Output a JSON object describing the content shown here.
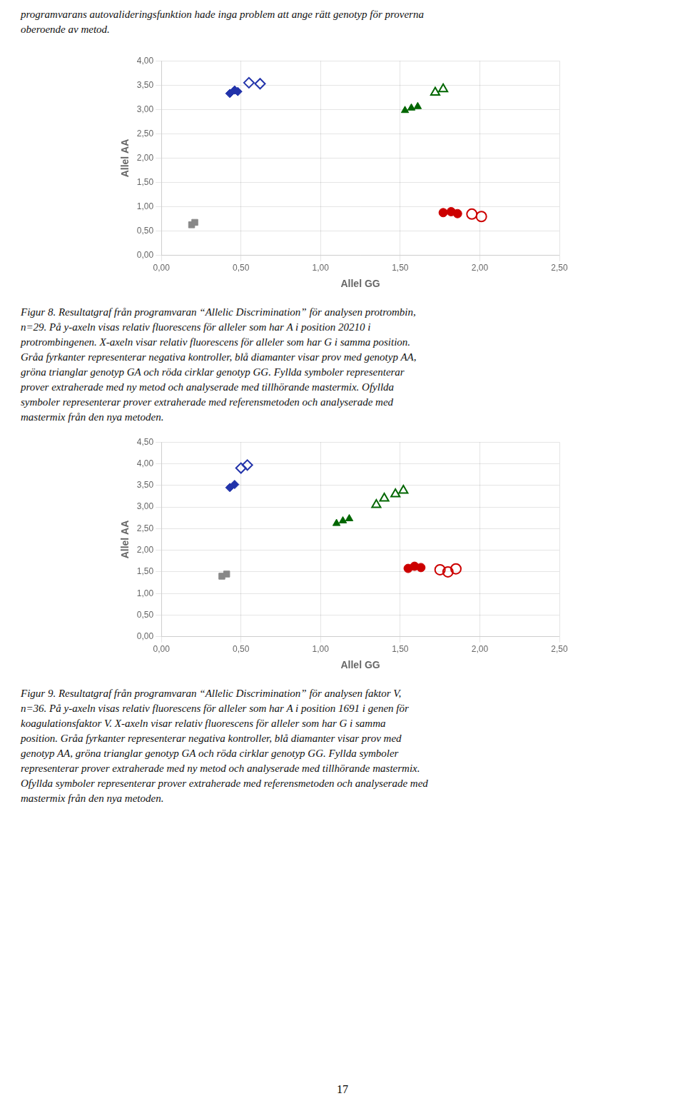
{
  "header": "programvarans autovalideringsfunktion hade inga problem att ange rätt genotyp för proverna\noberoende av metod.",
  "chart_data": [
    {
      "type": "scatter",
      "xlabel": "Allel GG",
      "ylabel": "Allel AA",
      "xlim": [
        0,
        2.5
      ],
      "ylim": [
        0,
        4.0
      ],
      "xticks": [
        {
          "value": 0.0,
          "label": "0,00"
        },
        {
          "value": 0.5,
          "label": "0,50"
        },
        {
          "value": 1.0,
          "label": "1,00"
        },
        {
          "value": 1.5,
          "label": "1,50"
        },
        {
          "value": 2.0,
          "label": "2,00"
        },
        {
          "value": 2.5,
          "label": "2,50"
        }
      ],
      "yticks": [
        {
          "value": 0.0,
          "label": "0,00"
        },
        {
          "value": 0.5,
          "label": "0,50"
        },
        {
          "value": 1.0,
          "label": "1,00"
        },
        {
          "value": 1.5,
          "label": "1,50"
        },
        {
          "value": 2.0,
          "label": "2,00"
        },
        {
          "value": 2.5,
          "label": "2,50"
        },
        {
          "value": 3.0,
          "label": "3,00"
        },
        {
          "value": 3.5,
          "label": "3,50"
        },
        {
          "value": 4.0,
          "label": "4,00"
        }
      ],
      "grid": true,
      "series": [
        {
          "x": [
            0.19,
            0.21
          ],
          "values": [
            0.63,
            0.68
          ],
          "color": "#888888",
          "marker": "square"
        },
        {
          "x": [
            0.43,
            0.46,
            0.48
          ],
          "values": [
            3.33,
            3.4,
            3.37
          ],
          "color": "#2233AA",
          "marker": "diamond"
        },
        {
          "x": [
            0.55,
            0.62
          ],
          "values": [
            3.55,
            3.53
          ],
          "color": "#2233AA",
          "marker": "open-diamond"
        },
        {
          "x": [
            1.53,
            1.57,
            1.61
          ],
          "values": [
            2.98,
            3.03,
            3.06
          ],
          "color": "#006600",
          "marker": "triangle"
        },
        {
          "x": [
            1.72,
            1.77
          ],
          "values": [
            3.35,
            3.42
          ],
          "color": "#006600",
          "marker": "open-triangle"
        },
        {
          "x": [
            1.77,
            1.82,
            1.86
          ],
          "values": [
            0.88,
            0.9,
            0.86
          ],
          "color": "#CC0000",
          "marker": "circle"
        },
        {
          "x": [
            1.95,
            2.01
          ],
          "values": [
            0.85,
            0.8
          ],
          "color": "#CC0000",
          "marker": "open-circle"
        }
      ],
      "caption": "Figur 8. Resultatgraf från programvaran “Allelic Discrimination” för analysen protrombin,\nn=29. På y-axeln visas relativ fluorescens för alleler som har A i position 20210 i\nprotrombingenen. X-axeln visar relativ fluorescens för alleler som har G i samma position.\nGråa fyrkanter representerar negativa kontroller, blå diamanter visar prov med genotyp AA,\ngröna trianglar genotyp GA och röda cirklar genotyp GG. Fyllda symboler representerar\nprover extraherade med ny metod och analyserade med tillhörande mastermix. Ofyllda\nsymboler representerar prover extraherade med referensmetoden och analyserade med\nmastermix från den nya metoden."
    },
    {
      "type": "scatter",
      "xlabel": "Allel GG",
      "ylabel": "Allel AA",
      "xlim": [
        0,
        2.5
      ],
      "ylim": [
        0,
        4.5
      ],
      "xticks": [
        {
          "value": 0.0,
          "label": "0,00"
        },
        {
          "value": 0.5,
          "label": "0,50"
        },
        {
          "value": 1.0,
          "label": "1,00"
        },
        {
          "value": 1.5,
          "label": "1,50"
        },
        {
          "value": 2.0,
          "label": "2,00"
        },
        {
          "value": 2.5,
          "label": "2,50"
        }
      ],
      "yticks": [
        {
          "value": 0.0,
          "label": "0,00"
        },
        {
          "value": 0.5,
          "label": "0,50"
        },
        {
          "value": 1.0,
          "label": "1,00"
        },
        {
          "value": 1.5,
          "label": "1,50"
        },
        {
          "value": 2.0,
          "label": "2,00"
        },
        {
          "value": 2.5,
          "label": "2,50"
        },
        {
          "value": 3.0,
          "label": "3,00"
        },
        {
          "value": 3.5,
          "label": "3,50"
        },
        {
          "value": 4.0,
          "label": "4,00"
        },
        {
          "value": 4.5,
          "label": "4,50"
        }
      ],
      "grid": true,
      "series": [
        {
          "x": [
            0.38,
            0.41
          ],
          "values": [
            1.4,
            1.45
          ],
          "color": "#888888",
          "marker": "square"
        },
        {
          "x": [
            0.43,
            0.46
          ],
          "values": [
            3.45,
            3.52
          ],
          "color": "#2233AA",
          "marker": "diamond"
        },
        {
          "x": [
            0.5,
            0.54
          ],
          "values": [
            3.9,
            3.97
          ],
          "color": "#2233AA",
          "marker": "open-diamond"
        },
        {
          "x": [
            1.1,
            1.14,
            1.18
          ],
          "values": [
            2.62,
            2.68,
            2.73
          ],
          "color": "#006600",
          "marker": "triangle"
        },
        {
          "x": [
            1.35,
            1.4,
            1.47,
            1.52
          ],
          "values": [
            3.05,
            3.2,
            3.3,
            3.38
          ],
          "color": "#006600",
          "marker": "open-triangle"
        },
        {
          "x": [
            1.55,
            1.59,
            1.63
          ],
          "values": [
            1.58,
            1.63,
            1.6
          ],
          "color": "#CC0000",
          "marker": "circle"
        },
        {
          "x": [
            1.75,
            1.8,
            1.85
          ],
          "values": [
            1.55,
            1.5,
            1.57
          ],
          "color": "#CC0000",
          "marker": "open-circle"
        }
      ],
      "caption": "Figur 9. Resultatgraf från programvaran “Allelic Discrimination” för analysen faktor V,\nn=36. På y-axeln visas relativ fluorescens för alleler som har A i position 1691 i genen för\nkoagulationsfaktor V. X-axeln visar relativ fluorescens för alleler som har G i samma\nposition. Gråa fyrkanter representerar negativa kontroller, blå diamanter visar prov med\ngenotyp AA, gröna trianglar genotyp GA och röda cirklar genotyp GG. Fyllda symboler\nrepresenterar prover extraherade med ny metod och analyserade med tillhörande mastermix.\nOfyllda symboler representerar prover extraherade med referensmetoden och analyserade med\nmastermix från den nya metoden."
    }
  ],
  "footer": "17"
}
